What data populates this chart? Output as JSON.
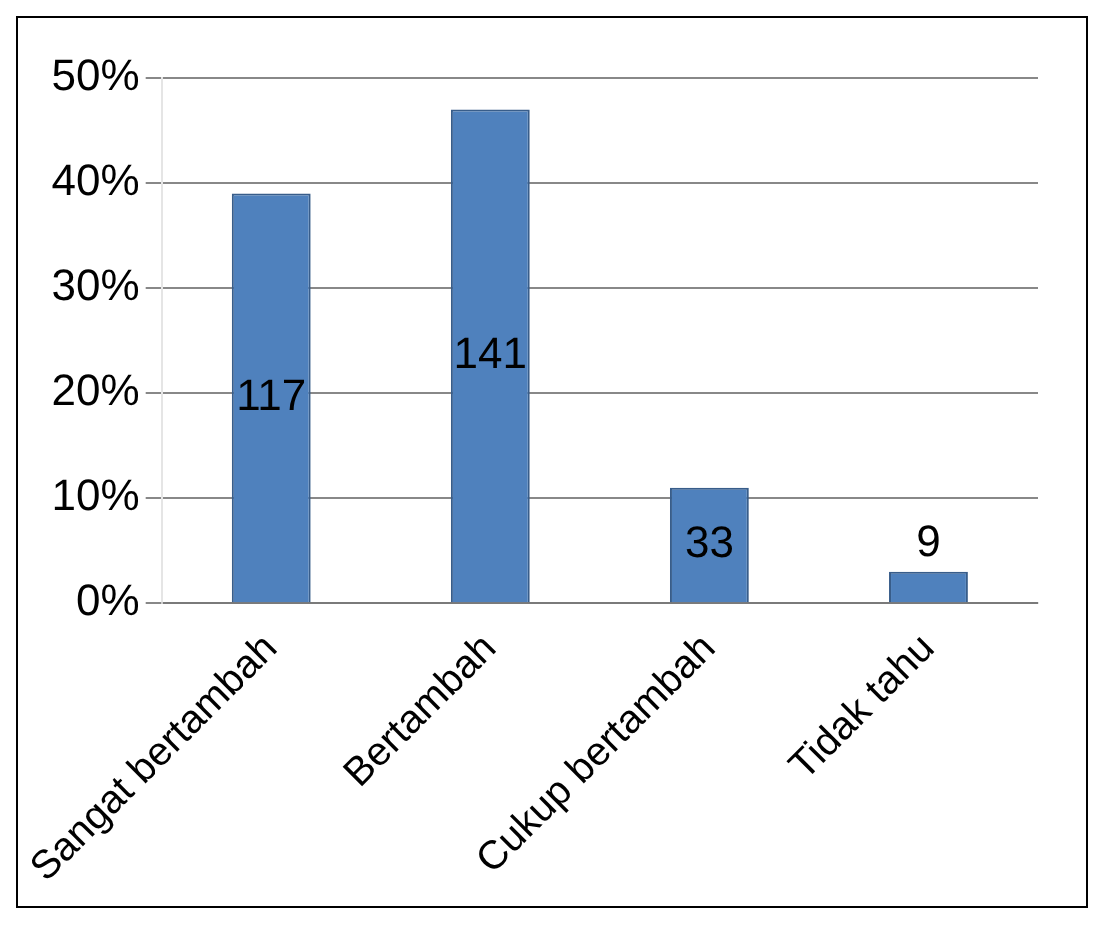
{
  "chart_data": {
    "type": "bar",
    "categories": [
      "Sangat bertambah",
      "Bertambah",
      "Cukup bertambah",
      "Tidak tahu"
    ],
    "values": [
      39,
      47,
      11,
      3
    ],
    "annotations": [
      "117",
      "141",
      "33",
      "9"
    ],
    "color": "#4f81bd",
    "ylim": [
      0,
      50
    ],
    "yticks": [
      {
        "value": 0,
        "label": "0%"
      },
      {
        "value": 10,
        "label": "10%"
      },
      {
        "value": 20,
        "label": "20%"
      },
      {
        "value": 30,
        "label": "30%"
      },
      {
        "value": 40,
        "label": "40%"
      },
      {
        "value": 50,
        "label": "50%"
      }
    ],
    "grid": "y",
    "legend": false
  }
}
